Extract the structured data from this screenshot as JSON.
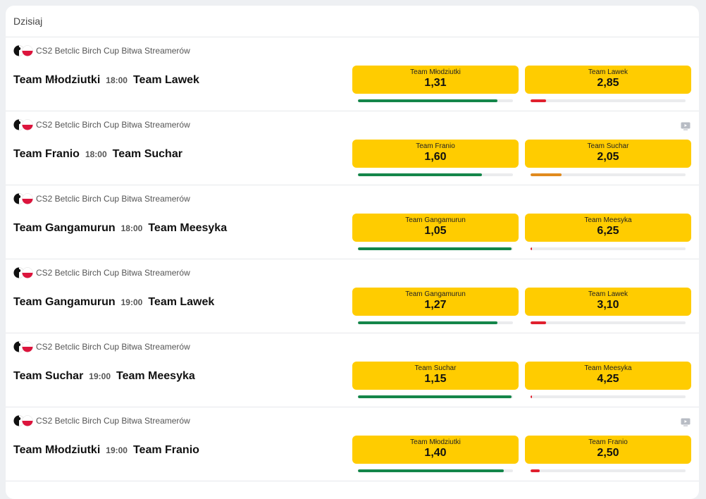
{
  "header": {
    "title": "Dzisiaj"
  },
  "matches": [
    {
      "league": "CS2 Betclic Birch Cup Bitwa Streamerów",
      "home": "Team Młodziutki",
      "time": "18:00",
      "away": "Team Lawek",
      "stream": false,
      "odds": [
        {
          "label": "Team Młodziutki",
          "price": "1,31",
          "share": 90,
          "color": "#14864a"
        },
        {
          "label": "Team Lawek",
          "price": "2,85",
          "share": 10,
          "color": "#e0202e"
        }
      ]
    },
    {
      "league": "CS2 Betclic Birch Cup Bitwa Streamerów",
      "home": "Team Franio",
      "time": "18:00",
      "away": "Team Suchar",
      "stream": true,
      "odds": [
        {
          "label": "Team Franio",
          "price": "1,60",
          "share": 80,
          "color": "#14864a"
        },
        {
          "label": "Team Suchar",
          "price": "2,05",
          "share": 20,
          "color": "#e08a1e"
        }
      ]
    },
    {
      "league": "CS2 Betclic Birch Cup Bitwa Streamerów",
      "home": "Team Gangamurun",
      "time": "18:00",
      "away": "Team Meesyka",
      "stream": false,
      "odds": [
        {
          "label": "Team Gangamurun",
          "price": "1,05",
          "share": 99,
          "color": "#14864a"
        },
        {
          "label": "Team Meesyka",
          "price": "6,25",
          "share": 1,
          "color": "#e0202e"
        }
      ]
    },
    {
      "league": "CS2 Betclic Birch Cup Bitwa Streamerów",
      "home": "Team Gangamurun",
      "time": "19:00",
      "away": "Team Lawek",
      "stream": false,
      "odds": [
        {
          "label": "Team Gangamurun",
          "price": "1,27",
          "share": 90,
          "color": "#14864a"
        },
        {
          "label": "Team Lawek",
          "price": "3,10",
          "share": 10,
          "color": "#e0202e"
        }
      ]
    },
    {
      "league": "CS2 Betclic Birch Cup Bitwa Streamerów",
      "home": "Team Suchar",
      "time": "19:00",
      "away": "Team Meesyka",
      "stream": false,
      "odds": [
        {
          "label": "Team Suchar",
          "price": "1,15",
          "share": 99,
          "color": "#14864a"
        },
        {
          "label": "Team Meesyka",
          "price": "4,25",
          "share": 1,
          "color": "#e0202e"
        }
      ]
    },
    {
      "league": "CS2 Betclic Birch Cup Bitwa Streamerów",
      "home": "Team Młodziutki",
      "time": "19:00",
      "away": "Team Franio",
      "stream": true,
      "odds": [
        {
          "label": "Team Młodziutki",
          "price": "1,40",
          "share": 94,
          "color": "#14864a"
        },
        {
          "label": "Team Franio",
          "price": "2,50",
          "share": 6,
          "color": "#e0202e"
        }
      ]
    }
  ]
}
